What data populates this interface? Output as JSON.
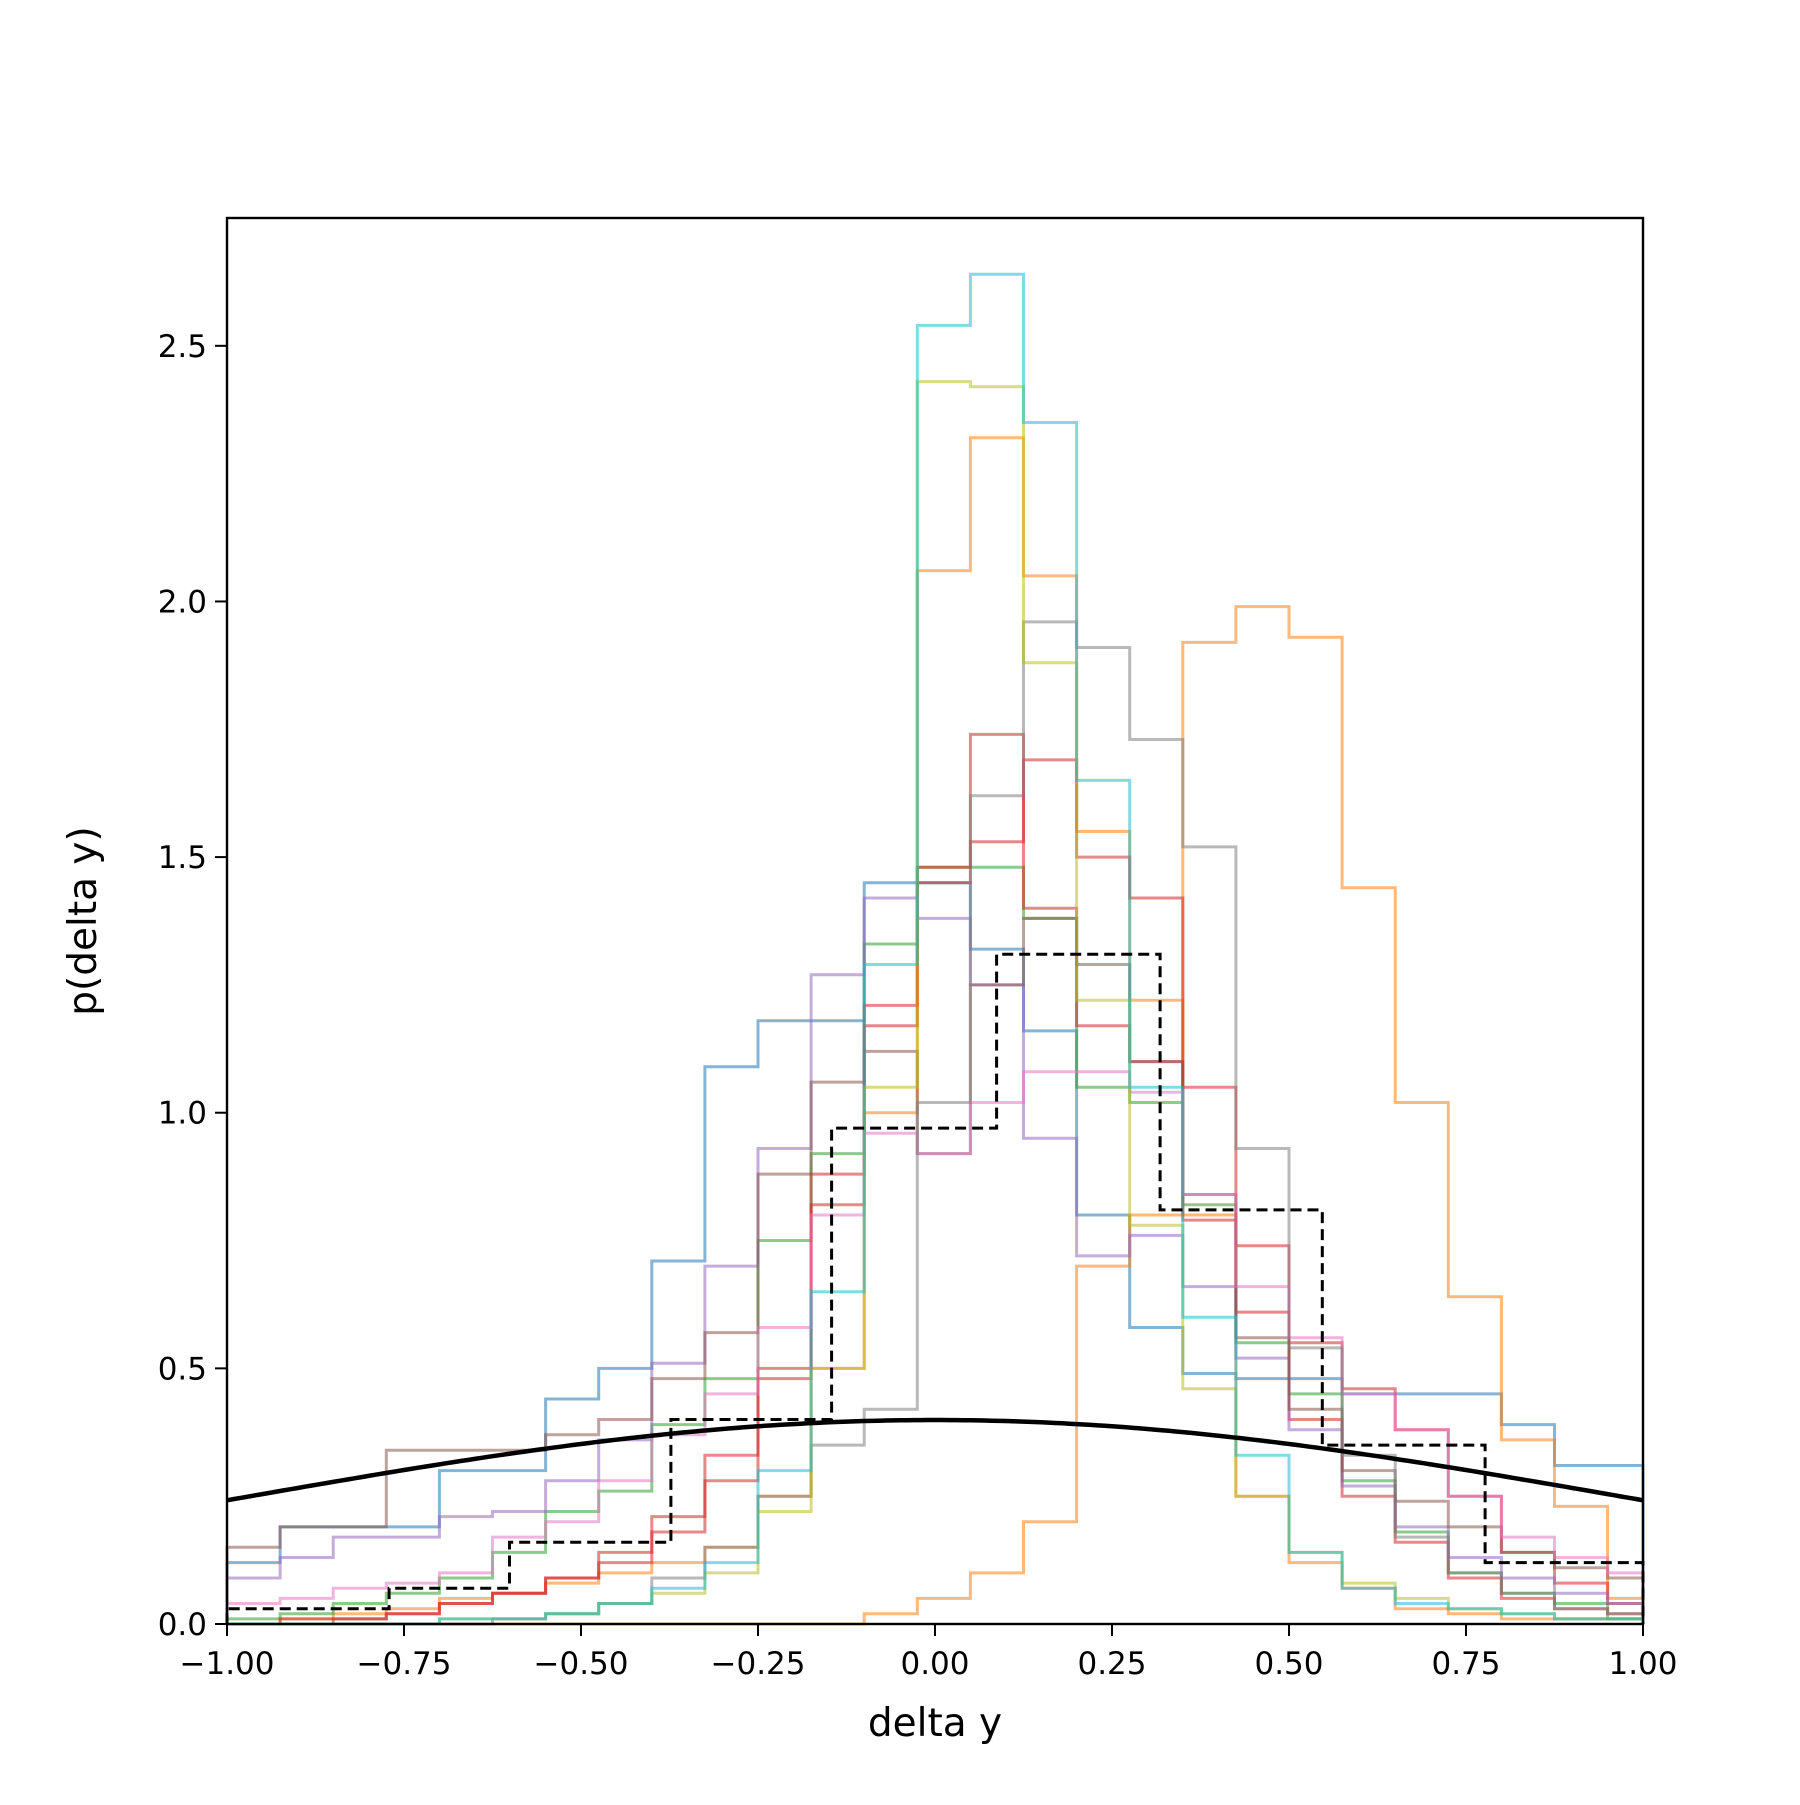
{
  "chart_data": {
    "type": "histogram",
    "xlabel": "delta y",
    "ylabel": "p(delta y)",
    "xlim": [
      -1.0,
      1.0
    ],
    "ylim": [
      0.0,
      2.75
    ],
    "x_ticks": [
      -1.0,
      -0.75,
      -0.5,
      -0.25,
      0.0,
      0.25,
      0.5,
      0.75,
      1.0
    ],
    "x_tick_labels": [
      "−1.00",
      "−0.75",
      "−0.50",
      "−0.25",
      "0.00",
      "0.25",
      "0.50",
      "0.75",
      "1.00"
    ],
    "y_ticks": [
      0.0,
      0.5,
      1.0,
      1.5,
      2.0,
      2.5
    ],
    "y_tick_labels": [
      "0.0",
      "0.5",
      "1.0",
      "1.5",
      "2.0",
      "2.5"
    ],
    "grid": false,
    "legend": "none",
    "bin_edges_fine": [
      -1.0,
      -0.925,
      -0.85,
      -0.775,
      -0.7,
      -0.625,
      -0.55,
      -0.475,
      -0.4,
      -0.325,
      -0.25,
      -0.175,
      -0.1,
      -0.025,
      0.05,
      0.125,
      0.2,
      0.275,
      0.35,
      0.425,
      0.5,
      0.575,
      0.65,
      0.725,
      0.8,
      0.875,
      0.95,
      1.0
    ],
    "series": [
      {
        "color": "#1f77b4",
        "opacity": 0.55,
        "values": [
          0.12,
          0.19,
          0.19,
          0.19,
          0.3,
          0.3,
          0.44,
          0.5,
          0.71,
          1.09,
          1.18,
          1.18,
          1.45,
          1.45,
          1.32,
          1.16,
          0.8,
          0.58,
          0.49,
          0.48,
          0.48,
          0.45,
          0.45,
          0.45,
          0.39,
          0.31,
          0.31
        ]
      },
      {
        "color": "#ff7f0e",
        "opacity": 0.55,
        "values": [
          0.0,
          0.0,
          0.0,
          0.0,
          0.0,
          0.0,
          0.0,
          0.0,
          0.0,
          0.0,
          0.0,
          0.0,
          0.02,
          0.05,
          0.1,
          0.2,
          0.7,
          0.8,
          1.92,
          1.99,
          1.93,
          1.44,
          1.02,
          0.64,
          0.36,
          0.23,
          0.05
        ]
      },
      {
        "color": "#ff7f0e",
        "opacity": 0.55,
        "values": [
          0.0,
          0.01,
          0.02,
          0.03,
          0.05,
          0.06,
          0.08,
          0.1,
          0.12,
          0.15,
          0.25,
          0.5,
          1.0,
          2.06,
          2.32,
          2.05,
          1.55,
          1.22,
          0.8,
          0.25,
          0.12,
          0.07,
          0.03,
          0.02,
          0.01,
          0.01,
          0.01
        ]
      },
      {
        "color": "#2ca02c",
        "opacity": 0.55,
        "values": [
          0.01,
          0.02,
          0.04,
          0.06,
          0.09,
          0.14,
          0.22,
          0.26,
          0.39,
          0.48,
          0.75,
          0.92,
          1.33,
          1.48,
          1.48,
          1.38,
          1.05,
          1.02,
          0.82,
          0.55,
          0.45,
          0.28,
          0.18,
          0.1,
          0.06,
          0.04,
          0.01
        ]
      },
      {
        "color": "#d62728",
        "opacity": 0.55,
        "values": [
          0.0,
          0.01,
          0.01,
          0.02,
          0.04,
          0.06,
          0.09,
          0.12,
          0.18,
          0.28,
          0.48,
          0.82,
          1.17,
          1.45,
          1.74,
          1.4,
          1.17,
          1.1,
          1.05,
          0.74,
          0.55,
          0.46,
          0.38,
          0.25,
          0.14,
          0.08,
          0.04
        ]
      },
      {
        "color": "#d62728",
        "opacity": 0.55,
        "values": [
          0.0,
          0.0,
          0.01,
          0.02,
          0.04,
          0.06,
          0.09,
          0.14,
          0.21,
          0.33,
          0.5,
          0.88,
          1.21,
          1.48,
          1.53,
          1.69,
          1.5,
          1.42,
          0.79,
          0.61,
          0.4,
          0.25,
          0.16,
          0.09,
          0.05,
          0.03,
          0.02
        ]
      },
      {
        "color": "#9467bd",
        "opacity": 0.55,
        "values": [
          0.09,
          0.13,
          0.17,
          0.17,
          0.21,
          0.22,
          0.28,
          0.36,
          0.51,
          0.7,
          0.93,
          1.27,
          1.42,
          1.38,
          1.25,
          0.95,
          0.72,
          0.76,
          0.66,
          0.52,
          0.38,
          0.27,
          0.19,
          0.13,
          0.09,
          0.06,
          0.04
        ]
      },
      {
        "color": "#8c564b",
        "opacity": 0.55,
        "values": [
          0.15,
          0.19,
          0.19,
          0.34,
          0.34,
          0.34,
          0.37,
          0.4,
          0.48,
          0.57,
          0.88,
          1.06,
          1.12,
          0.92,
          1.25,
          1.38,
          1.29,
          1.1,
          0.84,
          0.56,
          0.42,
          0.3,
          0.24,
          0.19,
          0.14,
          0.11,
          0.09
        ]
      },
      {
        "color": "#e377c2",
        "opacity": 0.55,
        "values": [
          0.04,
          0.05,
          0.07,
          0.08,
          0.1,
          0.17,
          0.2,
          0.28,
          0.37,
          0.45,
          0.58,
          0.8,
          0.96,
          0.92,
          1.02,
          1.08,
          1.08,
          1.04,
          0.84,
          0.66,
          0.56,
          0.45,
          0.38,
          0.25,
          0.17,
          0.13,
          0.1
        ]
      },
      {
        "color": "#7f7f7f",
        "opacity": 0.55,
        "values": [
          0.0,
          0.0,
          0.0,
          0.0,
          0.0,
          0.01,
          0.02,
          0.04,
          0.09,
          0.15,
          0.25,
          0.35,
          0.42,
          1.02,
          1.62,
          1.96,
          1.91,
          1.73,
          1.52,
          0.93,
          0.54,
          0.33,
          0.17,
          0.1,
          0.06,
          0.03,
          0.02
        ]
      },
      {
        "color": "#bcbd22",
        "opacity": 0.55,
        "values": [
          0.0,
          0.0,
          0.0,
          0.0,
          0.01,
          0.01,
          0.02,
          0.04,
          0.06,
          0.1,
          0.22,
          0.5,
          1.05,
          2.43,
          2.42,
          1.88,
          1.22,
          0.78,
          0.46,
          0.25,
          0.14,
          0.08,
          0.05,
          0.03,
          0.02,
          0.01,
          0.01
        ]
      },
      {
        "color": "#17becf",
        "opacity": 0.55,
        "values": [
          0.0,
          0.0,
          0.0,
          0.0,
          0.01,
          0.01,
          0.02,
          0.04,
          0.07,
          0.12,
          0.3,
          0.65,
          1.29,
          2.54,
          2.64,
          2.35,
          1.65,
          1.05,
          0.6,
          0.33,
          0.14,
          0.07,
          0.04,
          0.03,
          0.02,
          0.01,
          0.01
        ]
      }
    ],
    "reference_histogram": {
      "style": "dashed",
      "color": "#000000",
      "bin_edges": [
        -1.0,
        -0.771,
        -0.601,
        -0.373,
        -0.146,
        0.087,
        0.318,
        0.547,
        0.777,
        1.0
      ],
      "values": [
        0.03,
        0.07,
        0.16,
        0.4,
        0.97,
        1.31,
        0.81,
        0.35,
        0.12
      ]
    },
    "reference_curve": {
      "style": "solid",
      "color": "#000000",
      "type": "normal_pdf",
      "mean": 0.0,
      "std": 1.0
    }
  }
}
